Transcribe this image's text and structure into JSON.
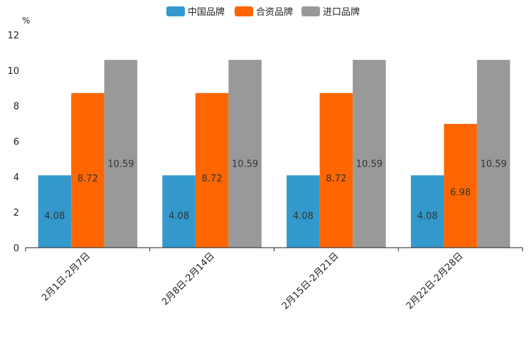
{
  "chart_data": {
    "type": "bar",
    "title": "",
    "xlabel": "",
    "ylabel": "%",
    "ylim": [
      0,
      12
    ],
    "yticks": [
      0,
      2,
      4,
      6,
      8,
      10,
      12
    ],
    "grid": false,
    "legend_position": "top-center",
    "categories": [
      "2月1日-2月7日",
      "2月8日-2月14日",
      "2月15日-2月21日",
      "2月22日-2月28日"
    ],
    "series": [
      {
        "name": "中国品牌",
        "color": "#3399cc",
        "values": [
          4.08,
          4.08,
          4.08,
          4.08
        ]
      },
      {
        "name": "合资品牌",
        "color": "#ff6600",
        "values": [
          8.72,
          8.72,
          8.72,
          6.98
        ]
      },
      {
        "name": "进口品牌",
        "color": "#999999",
        "values": [
          10.59,
          10.59,
          10.59,
          10.59
        ]
      }
    ]
  }
}
